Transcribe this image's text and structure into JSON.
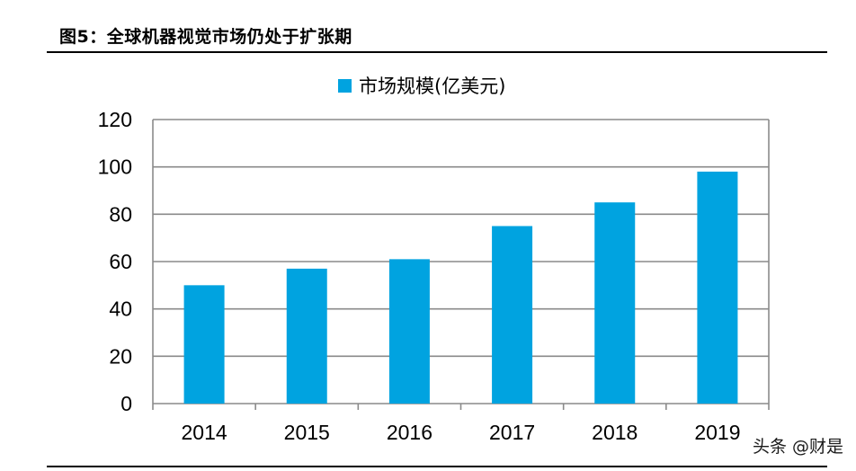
{
  "figure": {
    "title": "图5：全球机器视觉市场仍处于扩张期"
  },
  "watermark": "头条 @财是",
  "chart_data": {
    "type": "bar",
    "categories": [
      "2014",
      "2015",
      "2016",
      "2017",
      "2018",
      "2019"
    ],
    "series": [
      {
        "name": "市场规模(亿美元)",
        "values": [
          50,
          57,
          61,
          75,
          85,
          98
        ],
        "color": "#00A3E0"
      }
    ],
    "ylim": [
      0,
      120
    ],
    "yticks": [
      0,
      20,
      40,
      60,
      80,
      100,
      120
    ],
    "grid": true,
    "legend": "top-center",
    "gridColor": "#8a8a8a"
  }
}
